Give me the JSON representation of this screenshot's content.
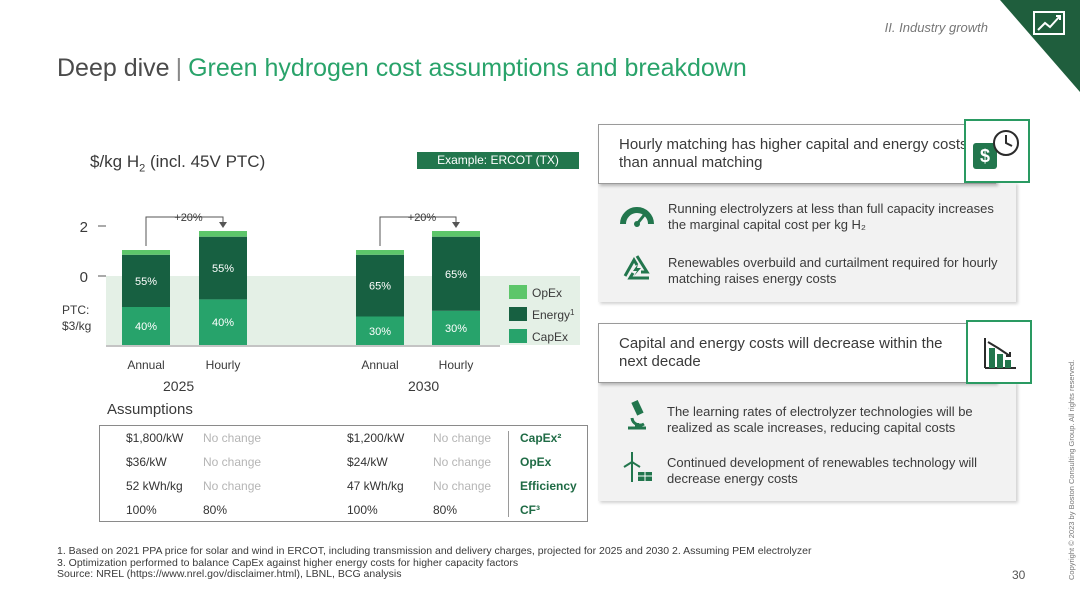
{
  "header": {
    "section": "II. Industry growth",
    "title_part1": "Deep dive",
    "title_sep": "|",
    "title_part2": "Green hydrogen cost assumptions and breakdown"
  },
  "chart_header": {
    "unit_main": "$/kg H",
    "unit_sub": "2",
    "unit_suffix": " (incl. 45V PTC)",
    "example": "Example: ERCOT (TX)"
  },
  "chart_data": {
    "type": "bar",
    "stacked": true,
    "y_ticks": [
      "2",
      "0"
    ],
    "ptc_label": [
      "PTC:",
      "$3/kg"
    ],
    "groups": [
      {
        "year": "2025",
        "bars": [
          {
            "label": "Annual",
            "segments": {
              "CapEx": "40%",
              "Energy": "55%",
              "OpEx": "5%"
            },
            "relative": 1.0
          },
          {
            "label": "Hourly",
            "segments": {
              "CapEx": "40%",
              "Energy": "55%",
              "OpEx": "5%"
            },
            "relative": 1.2
          }
        ],
        "increase": "+20%"
      },
      {
        "year": "2030",
        "bars": [
          {
            "label": "Annual",
            "segments": {
              "CapEx": "30%",
              "Energy": "65%",
              "OpEx": "5%"
            },
            "relative": 1.0
          },
          {
            "label": "Hourly",
            "segments": {
              "CapEx": "30%",
              "Energy": "65%",
              "OpEx": "5%"
            },
            "relative": 1.2
          }
        ],
        "increase": "+20%"
      }
    ],
    "legend": [
      {
        "name": "OpEx",
        "color": "#5dc66a"
      },
      {
        "name": "Energy",
        "sup": "1",
        "color": "#176041"
      },
      {
        "name": "CapEx",
        "color": "#27a36b"
      }
    ]
  },
  "assumptions": {
    "title": "Assumptions",
    "rows": [
      {
        "c1": "$1,800/kW",
        "c2": "No change",
        "c3": "$1,200/kW",
        "c4": "No change",
        "label": "CapEx²",
        "dim": true
      },
      {
        "c1": "$36/kW",
        "c2": "No change",
        "c3": "$24/kW",
        "c4": "No change",
        "label": "OpEx",
        "dim": true
      },
      {
        "c1": "52 kWh/kg",
        "c2": "No change",
        "c3": "47 kWh/kg",
        "c4": "No change",
        "label": "Efficiency",
        "dim": true
      },
      {
        "c1": "100%",
        "c2": "80%",
        "c3": "100%",
        "c4": "80%",
        "label": "CF³",
        "dim": false
      }
    ]
  },
  "cards": [
    {
      "title": "Hourly matching has higher capital and energy costs than annual matching",
      "icon": "dollar-clock-icon",
      "bullets": [
        {
          "icon": "speedometer-icon",
          "text": "Running electrolyzers at less than full capacity increases the marginal capital cost per kg H₂"
        },
        {
          "icon": "recycle-energy-icon",
          "text": "Renewables overbuild and curtailment required for hourly matching raises energy costs"
        }
      ]
    },
    {
      "title": "Capital and energy costs will decrease within the next decade",
      "icon": "declining-chart-icon",
      "bullets": [
        {
          "icon": "microscope-icon",
          "text": "The learning rates of electrolyzer technologies will be realized as scale increases, reducing capital costs"
        },
        {
          "icon": "wind-solar-icon",
          "text": "Continued development of renewables technology will decrease energy costs"
        }
      ]
    }
  ],
  "footer": {
    "notes": [
      "1. Based on 2021 PPA price for solar and wind in ERCOT, including transmission and delivery charges, projected for 2025 and 2030  2. Assuming PEM electrolyzer",
      "3. Optimization performed to balance CapEx against higher energy costs for higher capacity factors",
      "Source: NREL (https://www.nrel.gov/disclaimer.html), LBNL, BCG analysis"
    ],
    "page": "30",
    "copyright": "Copyright © 2023 by Boston Consulting Group. All rights reserved."
  },
  "colors": {
    "accent": "#29a36a",
    "dark_green": "#176041",
    "mid_green": "#27a36b",
    "light_green": "#5dc66a",
    "ptc_band": "#e4f0e6"
  }
}
